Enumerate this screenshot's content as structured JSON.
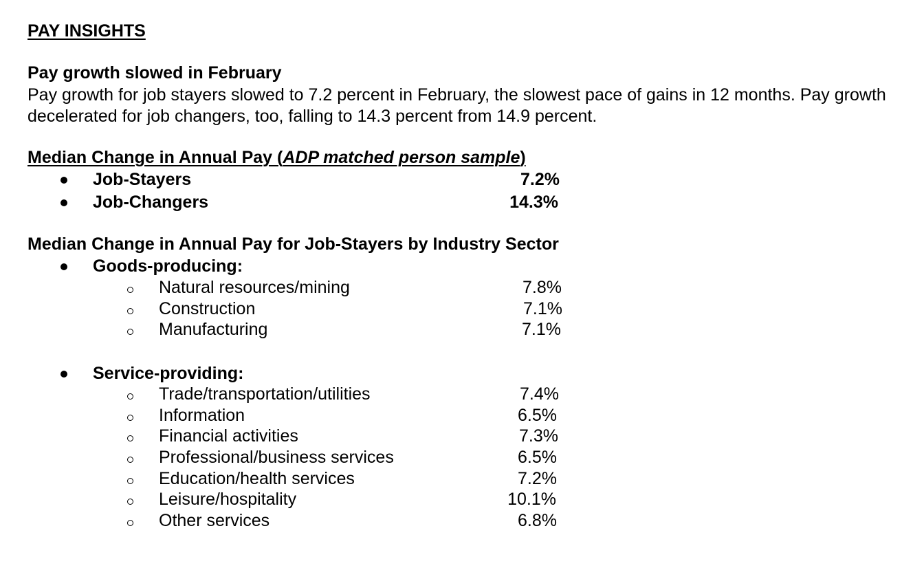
{
  "header": {
    "title": "PAY INSIGHTS"
  },
  "intro": {
    "heading": "Pay growth slowed in February",
    "body": "Pay growth for job stayers slowed to 7.2 percent in February, the slowest pace of gains in 12 months. Pay growth decelerated for job changers, too, falling to 14.3 percent from 14.9 percent."
  },
  "median": {
    "heading_pre": "Median Change in Annual Pay (",
    "heading_italic": "ADP matched person sample",
    "heading_post": ")",
    "items": [
      {
        "label": "Job-Stayers",
        "value": "7.2%"
      },
      {
        "label": "Job-Changers",
        "value": "14.3%"
      }
    ]
  },
  "sectors": {
    "heading": "Median Change in Annual Pay for Job-Stayers by Industry Sector",
    "goods": {
      "label": "Goods-producing:",
      "items": [
        {
          "label": "Natural resources/mining",
          "value": "7.8%"
        },
        {
          "label": "Construction",
          "value": "7.1%"
        },
        {
          "label": "Manufacturing",
          "value": "7.1%"
        }
      ]
    },
    "service": {
      "label": "Service-providing:",
      "items": [
        {
          "label": "Trade/transportation/utilities",
          "value": "7.4%"
        },
        {
          "label": "Information",
          "value": "6.5%"
        },
        {
          "label": "Financial activities",
          "value": "7.3%"
        },
        {
          "label": "Professional/business services",
          "value": "6.5%"
        },
        {
          "label": "Education/health services",
          "value": "7.2%"
        },
        {
          "label": "Leisure/hospitality",
          "value": "10.1%"
        },
        {
          "label": "Other services",
          "value": "6.8%"
        }
      ]
    }
  }
}
